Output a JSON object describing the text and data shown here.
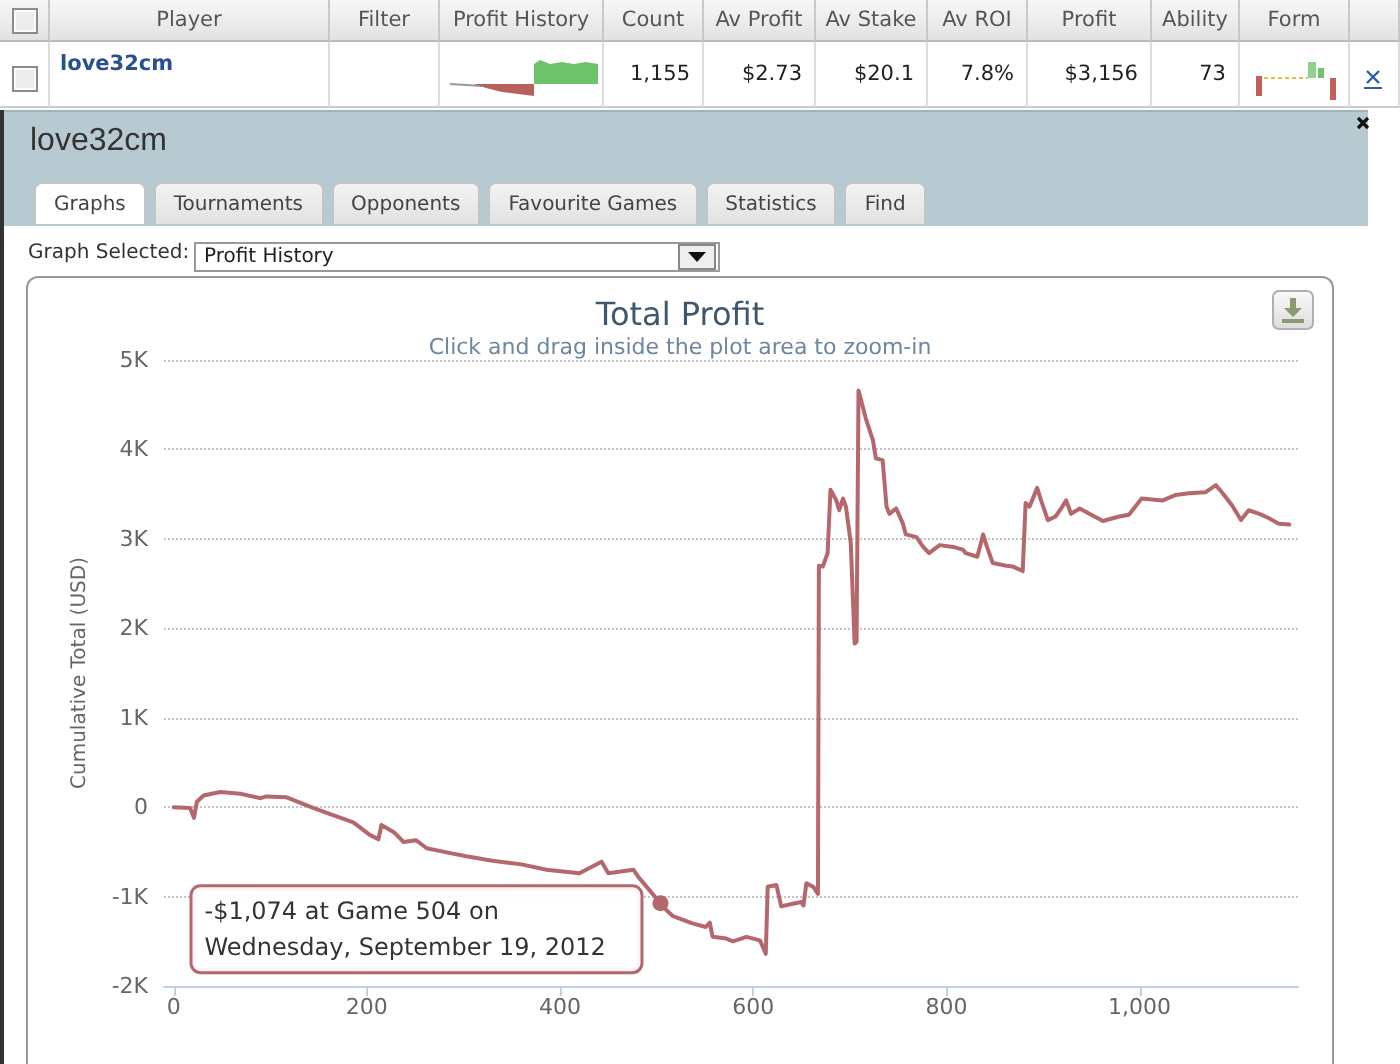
{
  "chart_data": [
    {
      "type": "other",
      "categories": [
        "Player",
        "Filter",
        "Profit History",
        "Count",
        "Av Profit",
        "Av Stake",
        "Av ROI",
        "Profit",
        "Ability",
        "Form"
      ],
      "value_labels": [
        "love32cm",
        null,
        null,
        "1,155",
        "$2.73",
        "$20.1",
        "7.8%",
        "$3,156",
        "73",
        null
      ]
    },
    {
      "type": "other",
      "title": "love32cm",
      "categories": [
        "Graphs",
        "Tournaments",
        "Opponents",
        "Favourite Games",
        "Statistics",
        "Find"
      ],
      "annotations": [
        "Graph Selected:",
        "Profit History"
      ]
    },
    {
      "type": "line",
      "title": "Total Profit",
      "subtitle": "Click and drag inside the plot area to zoom-in",
      "ylabel": "Cumulative Total (USD)",
      "x": [
        0,
        17,
        21,
        24,
        31,
        48,
        69,
        90,
        96,
        117,
        145,
        165,
        186,
        203,
        212,
        215,
        228,
        238,
        251,
        262,
        280,
        303,
        330,
        360,
        386,
        420,
        443,
        450,
        476,
        481,
        504,
        510,
        517,
        537,
        551,
        555,
        558,
        572,
        579,
        593,
        607,
        613,
        615,
        624,
        629,
        641,
        650,
        652,
        655,
        662,
        667,
        668,
        672,
        677,
        680,
        686,
        689,
        693,
        696,
        701,
        705,
        707,
        709,
        717,
        724,
        727,
        734,
        738,
        741,
        748,
        755,
        758,
        769,
        776,
        782,
        793,
        807,
        817,
        820,
        832,
        838,
        842,
        848,
        862,
        869,
        879,
        882,
        886,
        894,
        898,
        905,
        913,
        920,
        924,
        929,
        938,
        948,
        962,
        979,
        989,
        1002,
        1024,
        1037,
        1051,
        1068,
        1079,
        1086,
        1096,
        1105,
        1113,
        1124,
        1134,
        1144,
        1155
      ],
      "values": [
        0,
        -10,
        -120,
        60,
        130,
        170,
        150,
        100,
        120,
        110,
        -10,
        -90,
        -170,
        -310,
        -360,
        -200,
        -280,
        -390,
        -370,
        -460,
        -500,
        -550,
        -600,
        -640,
        -700,
        -740,
        -610,
        -740,
        -700,
        -780,
        -1074,
        -1150,
        -1220,
        -1300,
        -1340,
        -1290,
        -1450,
        -1470,
        -1500,
        -1450,
        -1490,
        -1640,
        -890,
        -870,
        -1110,
        -1080,
        -1060,
        -1100,
        -850,
        -890,
        -970,
        2700,
        2690,
        2840,
        3550,
        3430,
        3320,
        3450,
        3360,
        2950,
        1830,
        1850,
        4660,
        4330,
        4100,
        3900,
        3880,
        3360,
        3280,
        3340,
        3170,
        3050,
        3020,
        2910,
        2840,
        2930,
        2910,
        2880,
        2840,
        2800,
        3050,
        2910,
        2730,
        2700,
        2690,
        2640,
        3400,
        3360,
        3570,
        3430,
        3210,
        3250,
        3360,
        3430,
        3280,
        3340,
        3280,
        3200,
        3250,
        3270,
        3450,
        3430,
        3490,
        3510,
        3520,
        3600,
        3510,
        3370,
        3210,
        3320,
        3280,
        3230,
        3170,
        3160
      ],
      "color": "#b5686c",
      "xlim": [
        -10,
        1164
      ],
      "ylim": [
        -2000,
        5000
      ],
      "xticks": [
        0,
        200,
        400,
        600,
        800,
        {
          "value": 1000,
          "label": "1,000"
        }
      ],
      "yticks": [
        {
          "value": -2000,
          "label": "-2K"
        },
        {
          "value": -1000,
          "label": "-1K"
        },
        0,
        {
          "value": 1000,
          "label": "1K"
        },
        {
          "value": 2000,
          "label": "2K"
        },
        {
          "value": 3000,
          "label": "3K"
        },
        {
          "value": 4000,
          "label": "4K"
        },
        {
          "value": 5000,
          "label": "5K"
        }
      ],
      "grid": "y",
      "annotations": [
        {
          "text": "-$1,074 at Game 504 on Wednesday, September 19, 2012",
          "x": 504,
          "y": -1074
        }
      ]
    }
  ]
}
